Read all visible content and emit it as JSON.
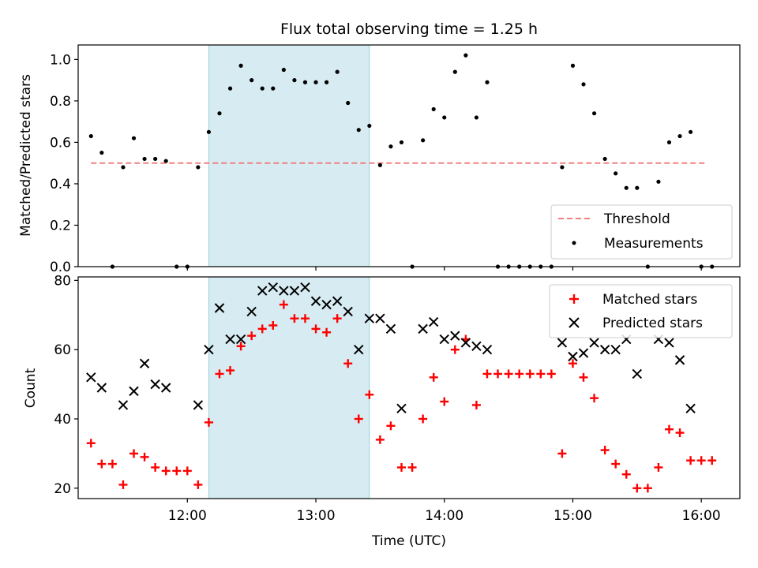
{
  "figure": {
    "title": "Flux total observing time = 1.25 h"
  },
  "colors": {
    "threshold": "#f08080",
    "measurement": "#000000",
    "matched": "#ff0000",
    "predicted": "#000000",
    "shade": "#add8e6"
  },
  "chart_data": [
    {
      "type": "scatter",
      "panel": "top",
      "title": "Flux total observing time = 1.25 h",
      "xlabel": "",
      "ylabel": "Matched/Predicted stars",
      "xlim": [
        "11:09",
        "16:18"
      ],
      "ylim": [
        0,
        1.07
      ],
      "xticks": [
        "12:00",
        "13:00",
        "14:00",
        "15:00",
        "16:00"
      ],
      "yticks": [
        "0.0",
        "0.2",
        "0.4",
        "0.6",
        "0.8",
        "1.0"
      ],
      "shaded_span": [
        "12:10",
        "13:25"
      ],
      "legend_position": "lower right",
      "threshold": {
        "name": "Threshold",
        "y": 0.5,
        "x": [
          "11:15",
          "16:03"
        ]
      },
      "series": [
        {
          "name": "Measurements",
          "marker": "dot",
          "points": [
            [
              "11:15",
              0.63
            ],
            [
              "11:20",
              0.55
            ],
            [
              "11:25",
              0.0
            ],
            [
              "11:30",
              0.48
            ],
            [
              "11:35",
              0.62
            ],
            [
              "11:40",
              0.52
            ],
            [
              "11:45",
              0.52
            ],
            [
              "11:50",
              0.51
            ],
            [
              "11:55",
              0.0
            ],
            [
              "12:00",
              0.0
            ],
            [
              "12:05",
              0.48
            ],
            [
              "12:10",
              0.65
            ],
            [
              "12:15",
              0.74
            ],
            [
              "12:20",
              0.86
            ],
            [
              "12:25",
              0.97
            ],
            [
              "12:30",
              0.9
            ],
            [
              "12:35",
              0.86
            ],
            [
              "12:40",
              0.86
            ],
            [
              "12:45",
              0.95
            ],
            [
              "12:50",
              0.9
            ],
            [
              "12:55",
              0.89
            ],
            [
              "13:00",
              0.89
            ],
            [
              "13:05",
              0.89
            ],
            [
              "13:10",
              0.94
            ],
            [
              "13:15",
              0.79
            ],
            [
              "13:20",
              0.66
            ],
            [
              "13:25",
              0.68
            ],
            [
              "13:30",
              0.49
            ],
            [
              "13:35",
              0.58
            ],
            [
              "13:40",
              0.6
            ],
            [
              "13:45",
              0.0
            ],
            [
              "13:50",
              0.61
            ],
            [
              "13:55",
              0.76
            ],
            [
              "14:00",
              0.72
            ],
            [
              "14:05",
              0.94
            ],
            [
              "14:10",
              1.02
            ],
            [
              "14:15",
              0.72
            ],
            [
              "14:20",
              0.89
            ],
            [
              "14:25",
              0.0
            ],
            [
              "14:30",
              0.0
            ],
            [
              "14:35",
              0.0
            ],
            [
              "14:40",
              0.0
            ],
            [
              "14:45",
              0.0
            ],
            [
              "14:50",
              0.0
            ],
            [
              "14:55",
              0.48
            ],
            [
              "15:00",
              0.97
            ],
            [
              "15:05",
              0.88
            ],
            [
              "15:10",
              0.74
            ],
            [
              "15:15",
              0.52
            ],
            [
              "15:20",
              0.45
            ],
            [
              "15:25",
              0.38
            ],
            [
              "15:30",
              0.38
            ],
            [
              "15:35",
              0.0
            ],
            [
              "15:40",
              0.41
            ],
            [
              "15:45",
              0.6
            ],
            [
              "15:50",
              0.63
            ],
            [
              "15:55",
              0.65
            ],
            [
              "16:00",
              0.0
            ],
            [
              "16:05",
              0.0
            ]
          ]
        }
      ]
    },
    {
      "type": "scatter",
      "panel": "bottom",
      "xlabel": "Time (UTC)",
      "ylabel": "Count",
      "xlim": [
        "11:09",
        "16:18"
      ],
      "ylim": [
        17,
        81
      ],
      "xticks": [
        "12:00",
        "13:00",
        "14:00",
        "15:00",
        "16:00"
      ],
      "yticks": [
        "20",
        "40",
        "60",
        "80"
      ],
      "shaded_span": [
        "12:10",
        "13:25"
      ],
      "legend_position": "upper right",
      "series": [
        {
          "name": "Matched stars",
          "marker": "plus",
          "points": [
            [
              "11:15",
              33
            ],
            [
              "11:20",
              27
            ],
            [
              "11:25",
              27
            ],
            [
              "11:30",
              21
            ],
            [
              "11:35",
              30
            ],
            [
              "11:40",
              29
            ],
            [
              "11:45",
              26
            ],
            [
              "11:50",
              25
            ],
            [
              "11:55",
              25
            ],
            [
              "12:00",
              25
            ],
            [
              "12:05",
              21
            ],
            [
              "12:10",
              39
            ],
            [
              "12:15",
              53
            ],
            [
              "12:20",
              54
            ],
            [
              "12:25",
              61
            ],
            [
              "12:30",
              64
            ],
            [
              "12:35",
              66
            ],
            [
              "12:40",
              67
            ],
            [
              "12:45",
              73
            ],
            [
              "12:50",
              69
            ],
            [
              "12:55",
              69
            ],
            [
              "13:00",
              66
            ],
            [
              "13:05",
              65
            ],
            [
              "13:10",
              69
            ],
            [
              "13:15",
              56
            ],
            [
              "13:20",
              40
            ],
            [
              "13:25",
              47
            ],
            [
              "13:30",
              34
            ],
            [
              "13:35",
              38
            ],
            [
              "13:40",
              26
            ],
            [
              "13:45",
              26
            ],
            [
              "13:50",
              40
            ],
            [
              "13:55",
              52
            ],
            [
              "14:00",
              45
            ],
            [
              "14:05",
              60
            ],
            [
              "14:10",
              63
            ],
            [
              "14:15",
              44
            ],
            [
              "14:20",
              53
            ],
            [
              "14:25",
              53
            ],
            [
              "14:30",
              53
            ],
            [
              "14:35",
              53
            ],
            [
              "14:40",
              53
            ],
            [
              "14:45",
              53
            ],
            [
              "14:50",
              53
            ],
            [
              "14:55",
              30
            ],
            [
              "15:00",
              56
            ],
            [
              "15:05",
              52
            ],
            [
              "15:10",
              46
            ],
            [
              "15:15",
              31
            ],
            [
              "15:20",
              27
            ],
            [
              "15:25",
              24
            ],
            [
              "15:30",
              20
            ],
            [
              "15:35",
              20
            ],
            [
              "15:40",
              26
            ],
            [
              "15:45",
              37
            ],
            [
              "15:50",
              36
            ],
            [
              "15:55",
              28
            ],
            [
              "16:00",
              28
            ],
            [
              "16:05",
              28
            ]
          ]
        },
        {
          "name": "Predicted stars",
          "marker": "x",
          "points": [
            [
              "11:15",
              52
            ],
            [
              "11:20",
              49
            ],
            [
              "11:30",
              44
            ],
            [
              "11:35",
              48
            ],
            [
              "11:40",
              56
            ],
            [
              "11:45",
              50
            ],
            [
              "11:50",
              49
            ],
            [
              "12:05",
              44
            ],
            [
              "12:10",
              60
            ],
            [
              "12:15",
              72
            ],
            [
              "12:20",
              63
            ],
            [
              "12:25",
              63
            ],
            [
              "12:30",
              71
            ],
            [
              "12:35",
              77
            ],
            [
              "12:40",
              78
            ],
            [
              "12:45",
              77
            ],
            [
              "12:50",
              77
            ],
            [
              "12:55",
              78
            ],
            [
              "13:00",
              74
            ],
            [
              "13:05",
              73
            ],
            [
              "13:10",
              74
            ],
            [
              "13:15",
              71
            ],
            [
              "13:20",
              60
            ],
            [
              "13:25",
              69
            ],
            [
              "13:30",
              69
            ],
            [
              "13:35",
              66
            ],
            [
              "13:40",
              43
            ],
            [
              "13:50",
              66
            ],
            [
              "13:55",
              68
            ],
            [
              "14:00",
              63
            ],
            [
              "14:05",
              64
            ],
            [
              "14:10",
              62
            ],
            [
              "14:15",
              61
            ],
            [
              "14:20",
              60
            ],
            [
              "14:55",
              62
            ],
            [
              "15:00",
              58
            ],
            [
              "15:05",
              59
            ],
            [
              "15:10",
              62
            ],
            [
              "15:15",
              60
            ],
            [
              "15:20",
              60
            ],
            [
              "15:25",
              63
            ],
            [
              "15:30",
              53
            ],
            [
              "15:40",
              63
            ],
            [
              "15:45",
              62
            ],
            [
              "15:50",
              57
            ],
            [
              "15:55",
              43
            ]
          ]
        }
      ]
    }
  ]
}
